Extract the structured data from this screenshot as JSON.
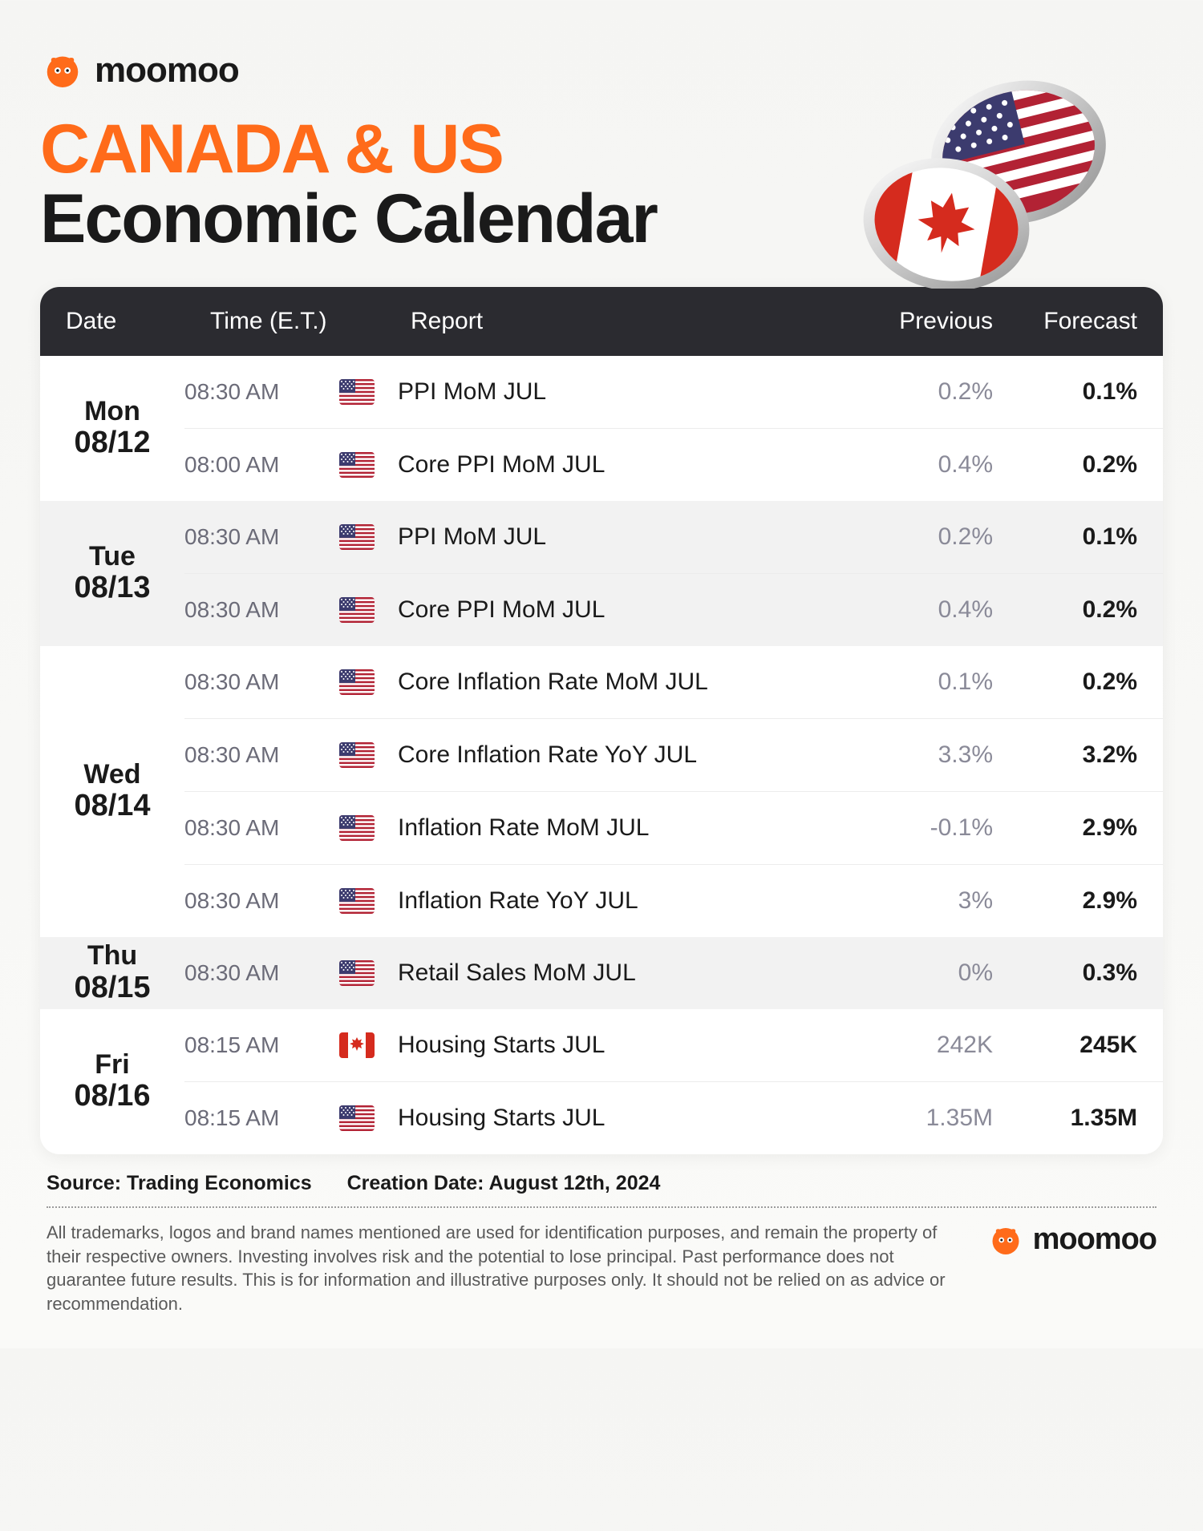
{
  "brand": {
    "name": "moomoo",
    "accent": "#ff6b1a"
  },
  "title": {
    "line1": "CANADA & US",
    "line2": "Economic Calendar"
  },
  "columns": {
    "date": "Date",
    "time": "Time (E.T.)",
    "report": "Report",
    "previous": "Previous",
    "forecast": "Forecast"
  },
  "days": [
    {
      "name": "Mon",
      "date": "08/12",
      "alt": false,
      "rows": [
        {
          "time": "08:30 AM",
          "flag": "us",
          "report": "PPI MoM JUL",
          "previous": "0.2%",
          "forecast": "0.1%"
        },
        {
          "time": "08:00 AM",
          "flag": "us",
          "report": "Core PPI MoM JUL",
          "previous": "0.4%",
          "forecast": "0.2%"
        }
      ]
    },
    {
      "name": "Tue",
      "date": "08/13",
      "alt": true,
      "rows": [
        {
          "time": "08:30 AM",
          "flag": "us",
          "report": "PPI MoM JUL",
          "previous": "0.2%",
          "forecast": "0.1%"
        },
        {
          "time": "08:30 AM",
          "flag": "us",
          "report": "Core PPI MoM JUL",
          "previous": "0.4%",
          "forecast": "0.2%"
        }
      ]
    },
    {
      "name": "Wed",
      "date": "08/14",
      "alt": false,
      "rows": [
        {
          "time": "08:30 AM",
          "flag": "us",
          "report": "Core Inflation Rate MoM JUL",
          "previous": "0.1%",
          "forecast": "0.2%"
        },
        {
          "time": "08:30 AM",
          "flag": "us",
          "report": "Core Inflation Rate YoY JUL",
          "previous": "3.3%",
          "forecast": "3.2%"
        },
        {
          "time": "08:30 AM",
          "flag": "us",
          "report": "Inflation Rate MoM JUL",
          "previous": "-0.1%",
          "forecast": "2.9%"
        },
        {
          "time": "08:30 AM",
          "flag": "us",
          "report": "Inflation Rate YoY JUL",
          "previous": "3%",
          "forecast": "2.9%"
        }
      ]
    },
    {
      "name": "Thu",
      "date": "08/15",
      "alt": true,
      "rows": [
        {
          "time": "08:30 AM",
          "flag": "us",
          "report": "Retail Sales MoM JUL",
          "previous": "0%",
          "forecast": "0.3%"
        }
      ]
    },
    {
      "name": "Fri",
      "date": "08/16",
      "alt": false,
      "rows": [
        {
          "time": "08:15 AM",
          "flag": "ca",
          "report": "Housing Starts JUL",
          "previous": "242K",
          "forecast": "245K"
        },
        {
          "time": "08:15 AM",
          "flag": "us",
          "report": "Housing Starts JUL",
          "previous": "1.35M",
          "forecast": "1.35M"
        }
      ]
    }
  ],
  "meta": {
    "source_label": "Source:",
    "source": "Trading Economics",
    "created_label": "Creation Date:",
    "created": "August 12th, 2024"
  },
  "disclaimer": "All trademarks, logos and brand names mentioned are used for identification purposes, and remain the property of their respective owners. Investing involves risk and the potential to lose principal. Past performance does not guarantee future results. This is for information and illustrative purposes only. It should not be relied on as advice or recommendation.",
  "styling": {
    "header_bg": "#2b2b30",
    "alt_row_bg": "#f2f2f2",
    "prev_color": "#8a8a98",
    "time_color": "#6b6b78",
    "title_fontsize": 86,
    "body_fontsize": 30
  }
}
